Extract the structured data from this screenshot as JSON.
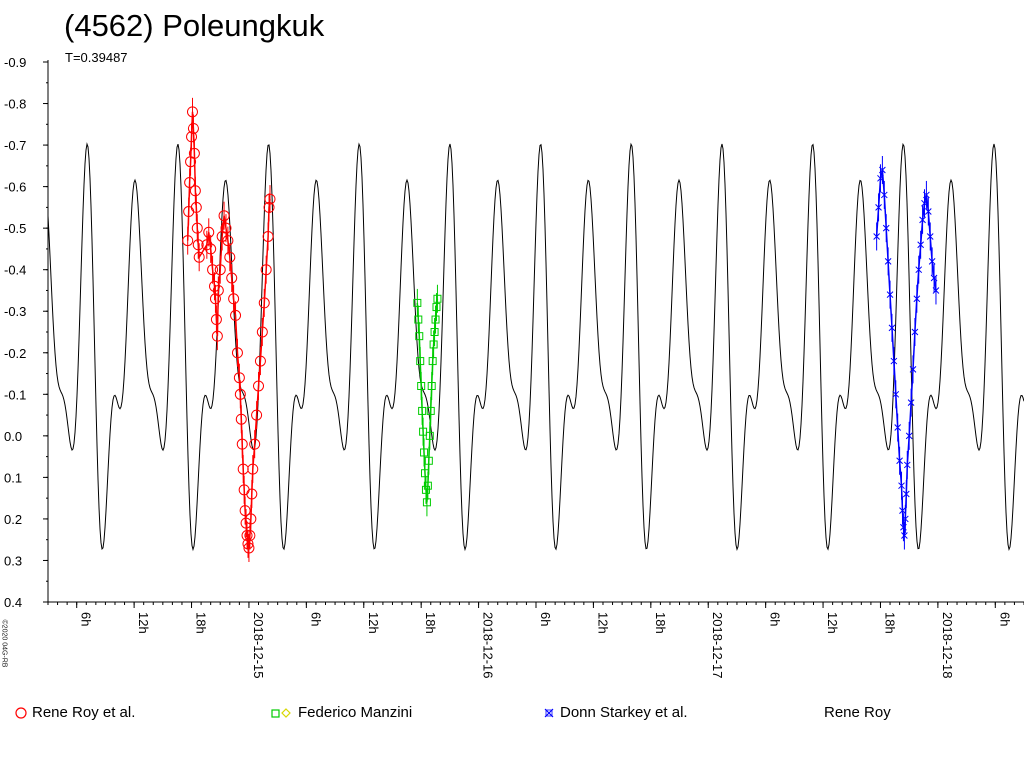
{
  "title": "(4562) Poleungkuk",
  "subtitle": "T=0.39487",
  "copyright": "©2020 04G-RB",
  "legend": [
    {
      "label": "Rene Roy et al.",
      "color": "#ff0000",
      "symbol": "circle"
    },
    {
      "label": "Federico Manzini",
      "color": "#00cc00",
      "symbol": "square-diamond",
      "color2": "#ffff00"
    },
    {
      "label": "Donn Starkey et al.",
      "color": "#0000ff",
      "symbol": "cross"
    },
    {
      "label": "Rene Roy",
      "color": "#000000",
      "symbol": "none"
    }
  ],
  "chart_data": {
    "type": "scatter",
    "title": "(4562) Poleungkuk",
    "subtitle": "T=0.39487",
    "xlabel": "",
    "ylabel": "",
    "y_inverted": true,
    "ylim": [
      0.4,
      -0.9
    ],
    "yticks": [
      "-0.9",
      "-0.8",
      "-0.7",
      "-0.6",
      "-0.5",
      "-0.4",
      "-0.3",
      "-0.2",
      "-0.1",
      "0.0",
      "0.1",
      "0.2",
      "0.3",
      "0.4"
    ],
    "xlim_hours": [
      3,
      105
    ],
    "xticks": [
      "6h",
      "12h",
      "18h",
      "2018-12-15",
      "6h",
      "12h",
      "18h",
      "2018-12-16",
      "6h",
      "12h",
      "18h",
      "2018-12-17",
      "6h",
      "12h",
      "18h",
      "2018-12-18",
      "6h",
      "12h",
      "18h"
    ],
    "model_period_days": 0.39487,
    "model_curve": {
      "name": "Rene Roy",
      "color": "#000000",
      "harmonics": {
        "mean": -0.2,
        "terms": [
          {
            "k": 1,
            "a": 0.1,
            "phase": 0.5
          },
          {
            "k": 2,
            "a": 0.3,
            "phase": 0.0
          },
          {
            "k": 3,
            "a": 0.12,
            "phase": 2.0
          },
          {
            "k": 4,
            "a": 0.15,
            "phase": 2.8
          }
        ]
      }
    },
    "series": [
      {
        "name": "Rene Roy et al.",
        "color": "#ff0000",
        "marker": "circle",
        "points": [
          [
            17.6,
            -0.47
          ],
          [
            17.7,
            -0.54
          ],
          [
            17.8,
            -0.61
          ],
          [
            17.9,
            -0.66
          ],
          [
            18.0,
            -0.72
          ],
          [
            18.1,
            -0.78
          ],
          [
            18.2,
            -0.74
          ],
          [
            18.3,
            -0.68
          ],
          [
            18.4,
            -0.59
          ],
          [
            18.5,
            -0.55
          ],
          [
            18.6,
            -0.5
          ],
          [
            18.7,
            -0.46
          ],
          [
            18.8,
            -0.43
          ],
          [
            19.6,
            -0.46
          ],
          [
            19.8,
            -0.49
          ],
          [
            20.0,
            -0.45
          ],
          [
            20.2,
            -0.4
          ],
          [
            20.4,
            -0.36
          ],
          [
            20.5,
            -0.33
          ],
          [
            20.6,
            -0.28
          ],
          [
            20.7,
            -0.24
          ],
          [
            20.8,
            -0.35
          ],
          [
            21.0,
            -0.4
          ],
          [
            21.2,
            -0.48
          ],
          [
            21.4,
            -0.53
          ],
          [
            21.6,
            -0.5
          ],
          [
            21.8,
            -0.47
          ],
          [
            22.0,
            -0.43
          ],
          [
            22.2,
            -0.38
          ],
          [
            22.4,
            -0.33
          ],
          [
            22.6,
            -0.29
          ],
          [
            22.8,
            -0.2
          ],
          [
            23.0,
            -0.14
          ],
          [
            23.1,
            -0.1
          ],
          [
            23.2,
            -0.04
          ],
          [
            23.3,
            0.02
          ],
          [
            23.4,
            0.08
          ],
          [
            23.5,
            0.13
          ],
          [
            23.6,
            0.18
          ],
          [
            23.7,
            0.21
          ],
          [
            23.8,
            0.24
          ],
          [
            23.9,
            0.26
          ],
          [
            24.0,
            0.27
          ],
          [
            24.1,
            0.24
          ],
          [
            24.2,
            0.2
          ],
          [
            24.3,
            0.14
          ],
          [
            24.4,
            0.08
          ],
          [
            24.6,
            0.02
          ],
          [
            24.8,
            -0.05
          ],
          [
            25.0,
            -0.12
          ],
          [
            25.2,
            -0.18
          ],
          [
            25.4,
            -0.25
          ],
          [
            25.6,
            -0.32
          ],
          [
            25.8,
            -0.4
          ],
          [
            26.0,
            -0.48
          ],
          [
            26.1,
            -0.55
          ],
          [
            26.2,
            -0.57
          ]
        ]
      },
      {
        "name": "Federico Manzini",
        "color": "#00cc00",
        "marker": "square",
        "points": [
          [
            41.6,
            -0.32
          ],
          [
            41.7,
            -0.28
          ],
          [
            41.8,
            -0.24
          ],
          [
            41.9,
            -0.18
          ],
          [
            42.0,
            -0.12
          ],
          [
            42.1,
            -0.06
          ],
          [
            42.2,
            -0.01
          ],
          [
            42.3,
            0.04
          ],
          [
            42.4,
            0.09
          ],
          [
            42.5,
            0.13
          ],
          [
            42.6,
            0.16
          ],
          [
            42.7,
            0.12
          ],
          [
            42.8,
            0.06
          ],
          [
            42.9,
            0.0
          ],
          [
            43.0,
            -0.06
          ],
          [
            43.1,
            -0.12
          ],
          [
            43.2,
            -0.18
          ],
          [
            43.3,
            -0.22
          ],
          [
            43.4,
            -0.25
          ],
          [
            43.5,
            -0.28
          ],
          [
            43.6,
            -0.31
          ],
          [
            43.7,
            -0.33
          ]
        ]
      },
      {
        "name": "Donn Starkey et al.",
        "color": "#0000ff",
        "marker": "cross",
        "points": [
          [
            89.6,
            -0.48
          ],
          [
            89.8,
            -0.55
          ],
          [
            90.0,
            -0.62
          ],
          [
            90.2,
            -0.64
          ],
          [
            90.4,
            -0.58
          ],
          [
            90.6,
            -0.5
          ],
          [
            90.8,
            -0.42
          ],
          [
            91.0,
            -0.34
          ],
          [
            91.2,
            -0.26
          ],
          [
            91.4,
            -0.18
          ],
          [
            91.6,
            -0.1
          ],
          [
            91.8,
            -0.02
          ],
          [
            92.0,
            0.06
          ],
          [
            92.2,
            0.12
          ],
          [
            92.3,
            0.18
          ],
          [
            92.4,
            0.22
          ],
          [
            92.5,
            0.24
          ],
          [
            92.6,
            0.2
          ],
          [
            92.7,
            0.14
          ],
          [
            92.8,
            0.07
          ],
          [
            93.0,
            0.0
          ],
          [
            93.2,
            -0.08
          ],
          [
            93.4,
            -0.16
          ],
          [
            93.6,
            -0.25
          ],
          [
            93.8,
            -0.33
          ],
          [
            94.0,
            -0.4
          ],
          [
            94.2,
            -0.46
          ],
          [
            94.4,
            -0.52
          ],
          [
            94.6,
            -0.56
          ],
          [
            94.8,
            -0.58
          ],
          [
            95.0,
            -0.54
          ],
          [
            95.2,
            -0.48
          ],
          [
            95.4,
            -0.42
          ],
          [
            95.6,
            -0.38
          ],
          [
            95.8,
            -0.35
          ]
        ]
      }
    ]
  }
}
